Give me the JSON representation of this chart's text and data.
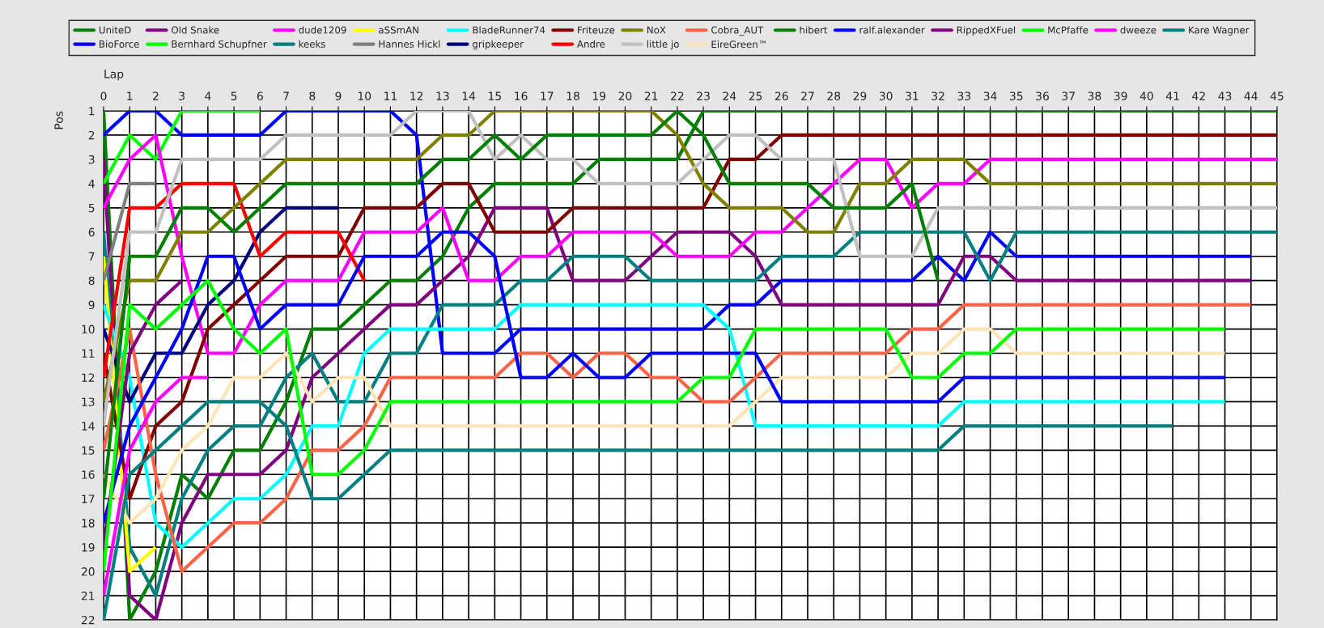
{
  "chart_data": {
    "type": "line",
    "xlabel": "Lap",
    "ylabel": "Pos",
    "x": [
      0,
      1,
      2,
      3,
      4,
      5,
      6,
      7,
      8,
      9,
      10,
      11,
      12,
      13,
      14,
      15,
      16,
      17,
      18,
      19,
      20,
      21,
      22,
      23,
      24,
      25,
      26,
      27,
      28,
      29,
      30,
      31,
      32,
      33,
      34,
      35,
      36,
      37,
      38,
      39,
      40,
      41,
      42,
      43,
      44,
      45
    ],
    "xlim": [
      0,
      45
    ],
    "xticks": [
      0,
      1,
      2,
      3,
      4,
      5,
      6,
      7,
      8,
      9,
      10,
      11,
      12,
      13,
      14,
      15,
      16,
      17,
      18,
      19,
      20,
      21,
      22,
      23,
      24,
      25,
      26,
      27,
      28,
      29,
      30,
      31,
      32,
      33,
      34,
      35,
      36,
      37,
      38,
      39,
      40,
      41,
      42,
      43,
      44,
      45
    ],
    "ylim": [
      22,
      1
    ],
    "yticks": [
      1,
      2,
      3,
      4,
      5,
      6,
      7,
      8,
      9,
      10,
      11,
      12,
      13,
      14,
      15,
      16,
      17,
      18,
      19,
      20,
      21,
      22
    ],
    "grid": true,
    "legend": "top",
    "marker": "none",
    "line_style": "solid",
    "series": [
      {
        "name": "UniteD",
        "color": "#008000",
        "values": [
          1,
          22,
          20,
          16,
          17,
          15,
          15,
          13,
          10,
          10,
          9,
          8,
          8,
          7,
          5,
          4,
          4,
          4,
          4,
          3,
          3,
          3,
          3,
          1,
          1,
          1,
          1,
          1,
          1,
          1,
          1,
          1,
          1,
          1,
          1,
          1,
          1,
          1,
          1,
          1,
          1,
          1,
          1,
          1,
          1,
          1
        ]
      },
      {
        "name": "BioForce",
        "color": "#0000ff",
        "values": [
          2,
          1,
          1,
          2,
          2,
          2,
          2,
          1,
          1,
          1,
          1,
          1,
          2,
          11,
          11,
          11,
          10,
          10,
          10,
          10,
          10,
          10,
          10,
          10,
          9,
          9,
          8,
          8,
          8,
          8,
          8,
          8,
          7,
          8,
          6,
          7,
          7,
          7,
          7,
          7,
          7,
          7,
          7,
          7,
          7,
          null
        ]
      },
      {
        "name": "Old Snake",
        "color": "#800080",
        "values": [
          3,
          21,
          22,
          18,
          16,
          16,
          16,
          15,
          12,
          11,
          10,
          9,
          9,
          8,
          7,
          5,
          5,
          5,
          8,
          8,
          8,
          7,
          6,
          6,
          6,
          7,
          9,
          9,
          9,
          9,
          9,
          9,
          9,
          7,
          7,
          8,
          8,
          8,
          8,
          8,
          8,
          8,
          8,
          8,
          8,
          null
        ]
      },
      {
        "name": "Bernhard Schupfner",
        "color": "#00ff00",
        "values": [
          4,
          2,
          3,
          1,
          1,
          1,
          1,
          null,
          null,
          null,
          null,
          null,
          null,
          null,
          null,
          null,
          null,
          null,
          null,
          null,
          null,
          null,
          null,
          null,
          null,
          null,
          null,
          null,
          null,
          null,
          null,
          null,
          null,
          null,
          null,
          null,
          null,
          null,
          null,
          null,
          null,
          null,
          null,
          null,
          null,
          null
        ]
      },
      {
        "name": "dude1209",
        "color": "#ff00ff",
        "values": [
          5,
          3,
          2,
          7,
          11,
          11,
          9,
          8,
          8,
          8,
          6,
          6,
          6,
          5,
          8,
          8,
          7,
          7,
          6,
          6,
          6,
          6,
          7,
          7,
          7,
          6,
          6,
          5,
          4,
          3,
          3,
          5,
          4,
          4,
          3,
          3,
          3,
          3,
          3,
          3,
          3,
          3,
          3,
          3,
          3,
          3
        ]
      },
      {
        "name": "keeks",
        "color": "#008080",
        "values": [
          6,
          19,
          21,
          17,
          15,
          14,
          14,
          12,
          11,
          13,
          13,
          11,
          11,
          9,
          9,
          9,
          8,
          8,
          7,
          7,
          7,
          8,
          8,
          8,
          8,
          8,
          7,
          7,
          7,
          6,
          6,
          6,
          6,
          6,
          8,
          6,
          6,
          6,
          6,
          6,
          6,
          6,
          6,
          6,
          6,
          6
        ]
      },
      {
        "name": "aSSmAN",
        "color": "#ffff00",
        "values": [
          7,
          20,
          19,
          null,
          null,
          null,
          null,
          null,
          null,
          null,
          null,
          null,
          null,
          null,
          null,
          null,
          null,
          null,
          null,
          null,
          null,
          null,
          null,
          null,
          null,
          null,
          null,
          null,
          null,
          null,
          null,
          null,
          null,
          null,
          null,
          null,
          null,
          null,
          null,
          null,
          null,
          null,
          null,
          null,
          null,
          null
        ]
      },
      {
        "name": "Hannes Hickl",
        "color": "#808080",
        "values": [
          8,
          4,
          4,
          null,
          null,
          null,
          null,
          null,
          null,
          null,
          null,
          null,
          null,
          null,
          null,
          null,
          null,
          null,
          null,
          null,
          null,
          null,
          null,
          null,
          null,
          null,
          null,
          null,
          null,
          null,
          null,
          null,
          null,
          null,
          null,
          null,
          null,
          null,
          null,
          null,
          null,
          null,
          null,
          null,
          null,
          null
        ]
      },
      {
        "name": "BladeRunner74",
        "color": "#00ffff",
        "values": [
          9,
          12,
          18,
          19,
          18,
          17,
          17,
          16,
          14,
          14,
          11,
          10,
          10,
          10,
          10,
          10,
          9,
          9,
          9,
          9,
          9,
          9,
          9,
          9,
          10,
          14,
          14,
          14,
          14,
          14,
          14,
          14,
          14,
          13,
          13,
          13,
          13,
          13,
          13,
          13,
          13,
          13,
          13,
          13,
          null,
          null
        ]
      },
      {
        "name": "gripkeeper",
        "color": "#000080",
        "values": [
          10,
          13,
          11,
          11,
          9,
          8,
          6,
          5,
          5,
          5,
          null,
          null,
          null,
          null,
          null,
          null,
          null,
          null,
          null,
          null,
          null,
          null,
          null,
          null,
          null,
          null,
          null,
          null,
          null,
          null,
          null,
          null,
          null,
          null,
          null,
          null,
          null,
          null,
          null,
          null,
          null,
          null,
          null,
          null,
          null,
          null
        ]
      },
      {
        "name": "Friteuze",
        "color": "#800000",
        "values": [
          11,
          17,
          14,
          13,
          10,
          9,
          8,
          7,
          7,
          7,
          5,
          5,
          5,
          4,
          4,
          6,
          6,
          6,
          5,
          5,
          5,
          5,
          5,
          5,
          3,
          3,
          2,
          2,
          2,
          2,
          2,
          2,
          2,
          2,
          2,
          2,
          2,
          2,
          2,
          2,
          2,
          2,
          2,
          2,
          2,
          2
        ]
      },
      {
        "name": "Andre",
        "color": "#ff0000",
        "values": [
          12,
          5,
          5,
          4,
          4,
          4,
          7,
          6,
          6,
          6,
          8,
          null,
          null,
          null,
          null,
          null,
          null,
          null,
          null,
          null,
          null,
          null,
          null,
          null,
          null,
          null,
          null,
          null,
          null,
          null,
          null,
          null,
          null,
          null,
          null,
          null,
          null,
          null,
          null,
          null,
          null,
          null,
          null,
          null,
          null,
          null
        ]
      },
      {
        "name": "NoX",
        "color": "#808000",
        "values": [
          13,
          8,
          8,
          6,
          6,
          5,
          4,
          3,
          3,
          3,
          3,
          3,
          3,
          2,
          2,
          1,
          1,
          1,
          1,
          1,
          1,
          1,
          2,
          4,
          5,
          5,
          5,
          6,
          6,
          4,
          4,
          3,
          3,
          3,
          4,
          4,
          4,
          4,
          4,
          4,
          4,
          4,
          4,
          4,
          4,
          4
        ]
      },
      {
        "name": "little jo",
        "color": "#c0c0c0",
        "values": [
          14,
          6,
          6,
          3,
          3,
          3,
          3,
          2,
          2,
          2,
          2,
          2,
          1,
          1,
          1,
          3,
          2,
          3,
          3,
          4,
          4,
          4,
          4,
          3,
          2,
          2,
          3,
          3,
          3,
          7,
          7,
          7,
          5,
          5,
          5,
          5,
          5,
          5,
          5,
          5,
          5,
          5,
          5,
          5,
          5,
          5
        ]
      },
      {
        "name": "Cobra_AUT",
        "color": "#ff6347",
        "values": [
          15,
          10,
          16,
          20,
          19,
          18,
          18,
          17,
          15,
          15,
          14,
          12,
          12,
          12,
          12,
          12,
          11,
          11,
          12,
          11,
          11,
          12,
          12,
          13,
          13,
          12,
          11,
          11,
          11,
          11,
          11,
          10,
          10,
          9,
          9,
          9,
          9,
          9,
          9,
          9,
          9,
          9,
          9,
          9,
          9,
          null
        ]
      },
      {
        "name": "EireGreen™",
        "color": "#ffe4b5",
        "values": [
          16,
          18,
          17,
          15,
          14,
          12,
          12,
          11,
          13,
          12,
          12,
          14,
          14,
          14,
          14,
          14,
          14,
          14,
          14,
          14,
          14,
          14,
          14,
          14,
          14,
          13,
          12,
          12,
          12,
          12,
          12,
          11,
          11,
          10,
          10,
          11,
          11,
          11,
          11,
          11,
          11,
          11,
          11,
          11,
          null,
          null
        ]
      },
      {
        "name": "hibert",
        "color": "#008000",
        "values": [
          17,
          7,
          7,
          5,
          5,
          6,
          5,
          4,
          4,
          4,
          4,
          4,
          4,
          3,
          3,
          2,
          3,
          2,
          2,
          2,
          2,
          2,
          1,
          2,
          4,
          4,
          4,
          4,
          5,
          5,
          5,
          4,
          8,
          null,
          null,
          null,
          null,
          null,
          null,
          null,
          null,
          null,
          null,
          null,
          null,
          null
        ]
      },
      {
        "name": "ralf.alexander",
        "color": "#0000ff",
        "values": [
          18,
          14,
          12,
          10,
          7,
          7,
          10,
          9,
          9,
          9,
          7,
          7,
          7,
          6,
          6,
          7,
          12,
          12,
          11,
          12,
          12,
          11,
          11,
          11,
          11,
          11,
          13,
          13,
          13,
          13,
          13,
          13,
          13,
          12,
          12,
          12,
          12,
          12,
          12,
          12,
          12,
          12,
          12,
          12,
          null,
          null
        ]
      },
      {
        "name": "RippedXFuel",
        "color": "#800080",
        "values": [
          19,
          11,
          9,
          8,
          null,
          null,
          null,
          null,
          null,
          null,
          null,
          null,
          null,
          null,
          null,
          null,
          null,
          null,
          null,
          null,
          null,
          null,
          null,
          null,
          null,
          null,
          null,
          null,
          null,
          null,
          null,
          null,
          null,
          null,
          null,
          null,
          null,
          null,
          null,
          null,
          null,
          null,
          null,
          null,
          null,
          null
        ]
      },
      {
        "name": "McPfaffe",
        "color": "#00ff00",
        "values": [
          20,
          9,
          10,
          9,
          8,
          10,
          11,
          10,
          16,
          16,
          15,
          13,
          13,
          13,
          13,
          13,
          13,
          13,
          13,
          13,
          13,
          13,
          13,
          12,
          12,
          10,
          10,
          10,
          10,
          10,
          10,
          12,
          12,
          11,
          11,
          10,
          10,
          10,
          10,
          10,
          10,
          10,
          10,
          10,
          null,
          null
        ]
      },
      {
        "name": "dweeze",
        "color": "#ff00ff",
        "values": [
          21,
          15,
          13,
          12,
          12,
          null,
          null,
          null,
          null,
          null,
          null,
          null,
          null,
          null,
          null,
          null,
          null,
          null,
          null,
          null,
          null,
          null,
          null,
          null,
          null,
          null,
          null,
          null,
          null,
          null,
          null,
          null,
          null,
          null,
          null,
          null,
          null,
          null,
          null,
          null,
          null,
          null,
          null,
          null,
          null,
          null
        ]
      },
      {
        "name": "Kare Wagner",
        "color": "#008080",
        "values": [
          22,
          16,
          15,
          14,
          13,
          13,
          13,
          14,
          17,
          17,
          16,
          15,
          15,
          15,
          15,
          15,
          15,
          15,
          15,
          15,
          15,
          15,
          15,
          15,
          15,
          15,
          15,
          15,
          15,
          15,
          15,
          15,
          15,
          14,
          14,
          14,
          14,
          14,
          14,
          14,
          14,
          14,
          null,
          null,
          null,
          null
        ]
      }
    ]
  }
}
